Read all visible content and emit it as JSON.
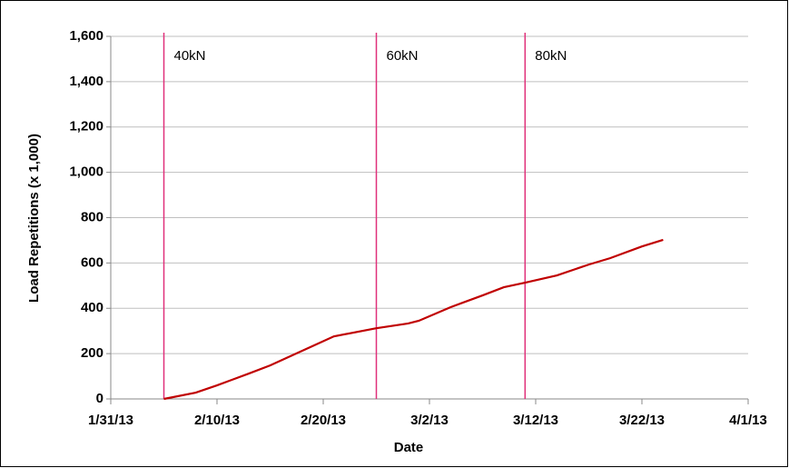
{
  "chart_data": {
    "type": "line",
    "x_label": "Date",
    "y_label": "Load Repetitions (x 1,000)",
    "x": [
      "2/5/13",
      "2/8/13",
      "2/10/13",
      "2/13/13",
      "2/15/13",
      "2/18/13",
      "2/21/13",
      "2/25/13",
      "2/28/13",
      "3/1/13",
      "3/4/13",
      "3/7/13",
      "3/9/13",
      "3/11/13",
      "3/14/13",
      "3/17/13",
      "3/19/13",
      "3/22/13",
      "3/24/13"
    ],
    "series": [
      {
        "color": "#c00000",
        "values": [
          0,
          28,
          60,
          112,
          148,
          212,
          276,
          312,
          333,
          345,
          405,
          457,
          493,
          513,
          545,
          593,
          621,
          673,
          702
        ]
      }
    ],
    "xlim": [
      "1/31/13",
      "4/1/13"
    ],
    "xticks": [
      "1/31/13",
      "2/10/13",
      "2/20/13",
      "3/2/13",
      "3/12/13",
      "3/22/13",
      "4/1/13"
    ],
    "ylim": [
      0,
      1600
    ],
    "yticks": [
      0,
      200,
      400,
      600,
      800,
      {
        "value": 1000,
        "label": "1,000"
      },
      {
        "value": 1200,
        "label": "1,200"
      },
      {
        "value": 1400,
        "label": "1,400"
      },
      {
        "value": 1600,
        "label": "1,600"
      }
    ],
    "grid": true,
    "markers": [
      {
        "x": "2/5/13",
        "label": "40kN"
      },
      {
        "x": "2/25/13",
        "label": "60kN"
      },
      {
        "x": "3/11/13",
        "label": "80kN"
      }
    ],
    "marker_color": "#e0307a"
  }
}
